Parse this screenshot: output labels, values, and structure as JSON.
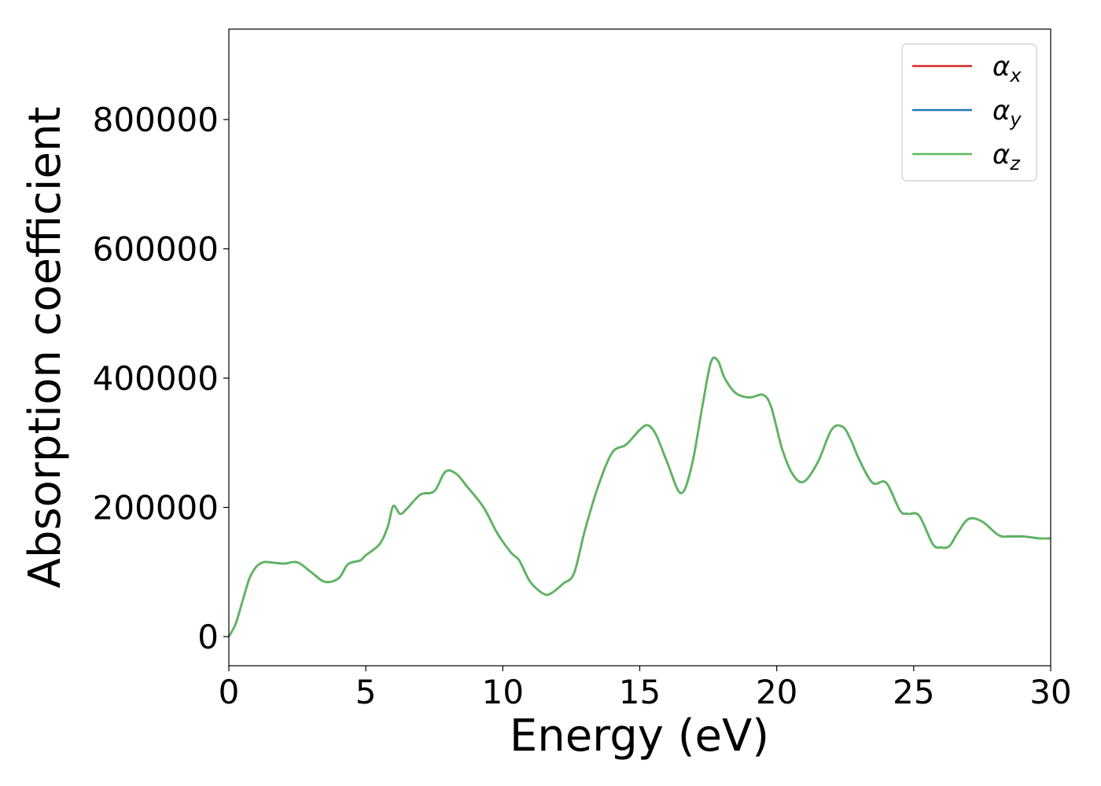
{
  "chart_data": {
    "type": "line",
    "xlabel": "Energy (eV)",
    "ylabel": "Absorption coefficient",
    "xlim": [
      0,
      30
    ],
    "ylim": [
      -45000,
      940000
    ],
    "x_ticks": [
      "0",
      "5",
      "10",
      "15",
      "20",
      "25",
      "30"
    ],
    "y_ticks": [
      "0",
      "200000",
      "400000",
      "600000",
      "800000"
    ],
    "grid": false,
    "legend_position": "top-right",
    "x": [
      0,
      0.25,
      0.5,
      0.75,
      1,
      1.25,
      1.5,
      2,
      2.5,
      3,
      3.5,
      4,
      4.3,
      4.5,
      4.8,
      5,
      5.5,
      5.8,
      6,
      6.25,
      6.5,
      7,
      7.5,
      7.9,
      8.3,
      8.7,
      9.3,
      9.8,
      10.3,
      10.6,
      11,
      11.5,
      11.8,
      12.2,
      12.6,
      13,
      13.5,
      14,
      14.5,
      15,
      15.3,
      15.6,
      16,
      16.5,
      16.9,
      17.3,
      17.6,
      17.85,
      18.1,
      18.5,
      19,
      19.5,
      19.8,
      20.2,
      20.6,
      21,
      21.5,
      22,
      22.4,
      22.7,
      23,
      23.5,
      24,
      24.5,
      24.8,
      25.2,
      25.7,
      26,
      26.3,
      26.6,
      27,
      27.5,
      28.1,
      28.5,
      29,
      29.6,
      30
    ],
    "series": [
      {
        "name": "x",
        "color": "#d62728",
        "values": [
          0,
          20000,
          55000,
          90000,
          108000,
          115000,
          115000,
          113000,
          115000,
          100000,
          85000,
          90000,
          110000,
          115000,
          118000,
          126000,
          143000,
          170000,
          202000,
          190000,
          198000,
          220000,
          225000,
          255000,
          252000,
          232000,
          200000,
          160000,
          130000,
          118000,
          85000,
          66000,
          68000,
          82000,
          98000,
          165000,
          235000,
          285000,
          297000,
          320000,
          327000,
          312000,
          270000,
          222000,
          265000,
          360000,
          425000,
          427000,
          400000,
          377000,
          370000,
          374000,
          355000,
          290000,
          250000,
          240000,
          270000,
          320000,
          325000,
          305000,
          275000,
          238000,
          238000,
          195000,
          190000,
          187000,
          143000,
          138000,
          140000,
          160000,
          182000,
          178000,
          157000,
          155000,
          155000,
          152000,
          152000
        ]
      },
      {
        "name": "y",
        "color": "#1f77b4",
        "values": [
          0,
          20000,
          55000,
          90000,
          108000,
          115000,
          115000,
          113000,
          115000,
          100000,
          85000,
          90000,
          110000,
          115000,
          118000,
          126000,
          143000,
          170000,
          202000,
          190000,
          198000,
          220000,
          225000,
          255000,
          252000,
          232000,
          200000,
          160000,
          130000,
          118000,
          85000,
          66000,
          68000,
          82000,
          98000,
          165000,
          235000,
          285000,
          297000,
          320000,
          327000,
          312000,
          270000,
          222000,
          265000,
          360000,
          425000,
          427000,
          400000,
          377000,
          370000,
          374000,
          355000,
          290000,
          250000,
          240000,
          270000,
          320000,
          325000,
          305000,
          275000,
          238000,
          238000,
          195000,
          190000,
          187000,
          143000,
          138000,
          140000,
          160000,
          182000,
          178000,
          157000,
          155000,
          155000,
          152000,
          152000
        ]
      },
      {
        "name": "z",
        "color": "#5cb85c",
        "values": [
          0,
          20000,
          55000,
          90000,
          108000,
          115000,
          115000,
          113000,
          115000,
          100000,
          85000,
          90000,
          110000,
          115000,
          118000,
          126000,
          143000,
          170000,
          202000,
          190000,
          198000,
          220000,
          225000,
          255000,
          252000,
          232000,
          200000,
          160000,
          130000,
          118000,
          85000,
          66000,
          68000,
          82000,
          98000,
          165000,
          235000,
          285000,
          297000,
          320000,
          327000,
          312000,
          270000,
          222000,
          265000,
          360000,
          425000,
          427000,
          400000,
          377000,
          370000,
          374000,
          355000,
          290000,
          250000,
          240000,
          270000,
          320000,
          325000,
          305000,
          275000,
          238000,
          238000,
          195000,
          190000,
          187000,
          143000,
          138000,
          140000,
          160000,
          182000,
          178000,
          157000,
          155000,
          155000,
          152000,
          152000
        ]
      }
    ],
    "legend": [
      {
        "symbol": "α",
        "sub": "x",
        "color": "#d62728"
      },
      {
        "symbol": "α",
        "sub": "y",
        "color": "#1f77b4"
      },
      {
        "symbol": "α",
        "sub": "z",
        "color": "#5cb85c"
      }
    ]
  }
}
